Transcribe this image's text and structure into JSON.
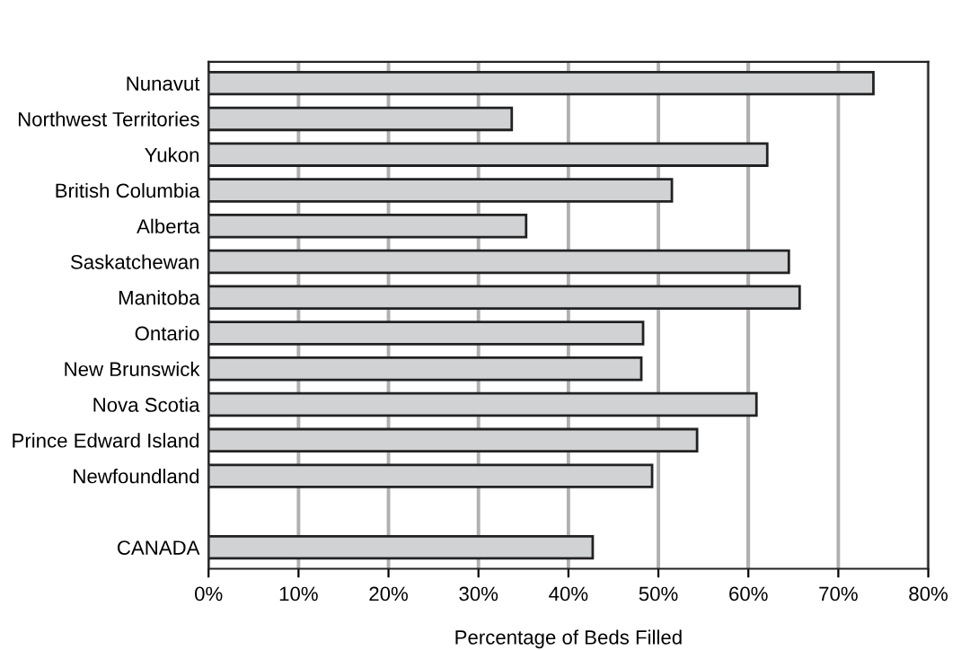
{
  "chart_data": {
    "type": "bar",
    "orientation": "horizontal",
    "xlabel": "Percentage of Beds Filled",
    "categories": [
      "Nunavut",
      "Northwest Territories",
      "Yukon",
      "British Columbia",
      "Alberta",
      "Saskatchewan",
      "Manitoba",
      "Ontario",
      "New Brunswick",
      "Nova Scotia",
      "Prince Edward Island",
      "Newfoundland",
      null,
      "CANADA"
    ],
    "values": [
      73.9,
      33.7,
      62.1,
      51.5,
      35.3,
      64.5,
      65.7,
      48.3,
      48.1,
      60.9,
      54.3,
      49.3,
      null,
      42.7
    ],
    "color": "#d0d2d4",
    "xlim": [
      0,
      80
    ],
    "xticks": [
      {
        "value": 0,
        "label": "0%"
      },
      {
        "value": 10,
        "label": "10%"
      },
      {
        "value": 20,
        "label": "20%"
      },
      {
        "value": 30,
        "label": "30%"
      },
      {
        "value": 40,
        "label": "40%"
      },
      {
        "value": 50,
        "label": "50%"
      },
      {
        "value": 60,
        "label": "60%"
      },
      {
        "value": 70,
        "label": "70%"
      },
      {
        "value": 80,
        "label": "80%"
      }
    ],
    "grid": "x",
    "ref_lines": [
      {
        "axis": "x",
        "value": 60,
        "color": "#a04a3a"
      }
    ],
    "legend": false
  }
}
